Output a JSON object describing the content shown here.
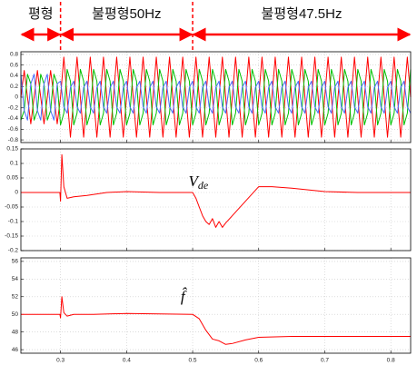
{
  "chart_data": [
    {
      "type": "line",
      "annotations": [
        "평형",
        "불평형50Hz",
        "불평형47.5Hz"
      ],
      "events": [
        0.3,
        0.5
      ],
      "xlim": [
        0.24,
        0.83
      ],
      "xticks": [
        0.3,
        0.4,
        0.5,
        0.6,
        0.7,
        0.8
      ],
      "xtick_labels": false,
      "ylim": [
        -0.85,
        0.85
      ],
      "yticks": [
        -0.8,
        -0.6,
        -0.4,
        -0.2,
        0,
        0.2,
        0.4,
        0.6,
        0.8
      ],
      "grid": true,
      "x": [
        0.24,
        0.245,
        0.25,
        0.255,
        0.26,
        0.265,
        0.27,
        0.275,
        0.28,
        0.285,
        0.29,
        0.295,
        0.3,
        0.305,
        0.31,
        0.315,
        0.32,
        0.325,
        0.33,
        0.335,
        0.34,
        0.345,
        0.35,
        0.355,
        0.36,
        0.365,
        0.37,
        0.375,
        0.38,
        0.385,
        0.39,
        0.395,
        0.4,
        0.405,
        0.41,
        0.415,
        0.42,
        0.425,
        0.43,
        0.435,
        0.44,
        0.445,
        0.45,
        0.455,
        0.46,
        0.465,
        0.47,
        0.475,
        0.48,
        0.485,
        0.49,
        0.495,
        0.5,
        0.505,
        0.51,
        0.515,
        0.52,
        0.525,
        0.53,
        0.535,
        0.54,
        0.545,
        0.55,
        0.555,
        0.56,
        0.565,
        0.57,
        0.575,
        0.58,
        0.585,
        0.59,
        0.595,
        0.6,
        0.605,
        0.61,
        0.615,
        0.62,
        0.625,
        0.63,
        0.635,
        0.64,
        0.645,
        0.65,
        0.655,
        0.66,
        0.665,
        0.67,
        0.675,
        0.68,
        0.685,
        0.69,
        0.695,
        0.7,
        0.705,
        0.71,
        0.715,
        0.72,
        0.725,
        0.73,
        0.735,
        0.74,
        0.745,
        0.75,
        0.755,
        0.76,
        0.765,
        0.77,
        0.775,
        0.78,
        0.785,
        0.79,
        0.795,
        0.8,
        0.805,
        0.81,
        0.815,
        0.82,
        0.825,
        0.83
      ],
      "series": [
        {
          "color": "#ff0000",
          "values": [
            0,
            0.5,
            0,
            -0.5,
            0,
            0.5,
            0,
            -0.5,
            0,
            0.5,
            0,
            -0.5,
            0,
            0.75,
            0,
            -0.75,
            0,
            0.75,
            0,
            -0.75,
            0,
            0.75,
            0,
            -0.75,
            0,
            0.75,
            0,
            -0.75,
            0,
            0.75,
            0,
            -0.75,
            0,
            0.75,
            0,
            -0.75,
            0,
            0.75,
            0,
            -0.75,
            0,
            0.75,
            0,
            -0.75,
            0,
            0.75,
            0,
            -0.75,
            0,
            0.75,
            0,
            -0.75,
            0,
            0.75,
            0,
            -0.75,
            0,
            0.75,
            0,
            -0.75,
            0,
            0.75,
            0,
            -0.75,
            0,
            0.75,
            0,
            -0.75,
            0,
            0.75,
            0,
            -0.75,
            0,
            0.75,
            0,
            -0.75,
            0,
            0.75,
            0,
            -0.75,
            0,
            0.75,
            0,
            -0.75,
            0,
            0.75,
            0,
            -0.75,
            0,
            0.75,
            0,
            -0.75,
            0,
            0.75,
            0,
            -0.75,
            0,
            0.75,
            0,
            -0.75,
            0,
            0.75,
            0,
            -0.75,
            0,
            0.75,
            0,
            -0.75,
            0,
            0.75,
            0,
            -0.75,
            0,
            0.75,
            0,
            -0.75,
            0,
            0.75,
            0
          ]
        },
        {
          "color": "#00c000",
          "values": [
            -0.43,
            -0.25,
            0.43,
            0.25,
            -0.43,
            -0.25,
            0.43,
            0.25,
            -0.43,
            -0.25,
            0.43,
            0.25,
            -0.52,
            -0.3,
            0.52,
            0.3,
            -0.52,
            -0.3,
            0.52,
            0.3,
            -0.52,
            -0.3,
            0.52,
            0.3,
            -0.52,
            -0.3,
            0.52,
            0.3,
            -0.52,
            -0.3,
            0.52,
            0.3,
            -0.52,
            -0.3,
            0.52,
            0.3,
            -0.52,
            -0.3,
            0.52,
            0.3,
            -0.52,
            -0.3,
            0.52,
            0.3,
            -0.52,
            -0.3,
            0.52,
            0.3,
            -0.52,
            -0.3,
            0.52,
            0.3,
            -0.52,
            -0.3,
            0.52,
            0.3,
            -0.52,
            -0.3,
            0.52,
            0.3,
            -0.52,
            -0.3,
            0.52,
            0.3,
            -0.52,
            -0.3,
            0.52,
            0.3,
            -0.52,
            -0.3,
            0.52,
            0.3,
            -0.52,
            -0.3,
            0.52,
            0.3,
            -0.52,
            -0.3,
            0.52,
            0.3,
            -0.52,
            -0.3,
            0.52,
            0.3,
            -0.52,
            -0.3,
            0.52,
            0.3,
            -0.52,
            -0.3,
            0.52,
            0.3,
            -0.52,
            -0.3,
            0.52,
            0.3,
            -0.52,
            -0.3,
            0.52,
            0.3,
            -0.52,
            -0.3,
            0.52,
            0.3,
            -0.52,
            -0.3,
            0.52,
            0.3,
            -0.52,
            -0.3,
            0.52,
            0.3,
            -0.52,
            -0.3,
            0.52,
            0.3,
            -0.52,
            -0.3,
            0.52
          ]
        },
        {
          "color": "#4a6cff",
          "values": [
            0.43,
            -0.25,
            -0.43,
            0.25,
            0.43,
            -0.25,
            -0.43,
            0.25,
            0.43,
            -0.25,
            -0.43,
            0.25,
            0.3,
            -0.18,
            -0.3,
            0.18,
            0.3,
            -0.18,
            -0.3,
            0.18,
            0.3,
            -0.18,
            -0.3,
            0.18,
            0.3,
            -0.18,
            -0.3,
            0.18,
            0.3,
            -0.18,
            -0.3,
            0.18,
            0.3,
            -0.18,
            -0.3,
            0.18,
            0.3,
            -0.18,
            -0.3,
            0.18,
            0.3,
            -0.18,
            -0.3,
            0.18,
            0.3,
            -0.18,
            -0.3,
            0.18,
            0.3,
            -0.18,
            -0.3,
            0.18,
            0.3,
            -0.18,
            -0.3,
            0.18,
            0.3,
            -0.18,
            -0.3,
            0.18,
            0.3,
            -0.18,
            -0.3,
            0.18,
            0.3,
            -0.18,
            -0.3,
            0.18,
            0.3,
            -0.18,
            -0.3,
            0.18,
            0.3,
            -0.18,
            -0.3,
            0.18,
            0.3,
            -0.18,
            -0.3,
            0.18,
            0.3,
            -0.18,
            -0.3,
            0.18,
            0.3,
            -0.18,
            -0.3,
            0.18,
            0.3,
            -0.18,
            -0.3,
            0.18,
            0.3,
            -0.18,
            -0.3,
            0.18,
            0.3,
            -0.18,
            -0.3,
            0.18,
            0.3,
            -0.18,
            -0.3,
            0.18,
            0.3,
            -0.18,
            -0.3,
            0.18,
            0.3,
            -0.18,
            -0.3,
            0.18,
            0.3,
            -0.18,
            -0.3,
            0.18,
            0.3,
            -0.18,
            -0.3
          ]
        }
      ]
    },
    {
      "type": "line",
      "label": "V",
      "label_sub": "de",
      "xlim": [
        0.24,
        0.83
      ],
      "xticks": [
        0.3,
        0.4,
        0.5,
        0.6,
        0.7,
        0.8
      ],
      "xtick_labels": false,
      "ylim": [
        -0.2,
        0.15
      ],
      "yticks": [
        -0.2,
        -0.15,
        -0.1,
        -0.05,
        0,
        0.05,
        0.1,
        0.15
      ],
      "grid": true,
      "x": [
        0.24,
        0.29,
        0.299,
        0.3,
        0.302,
        0.305,
        0.31,
        0.32,
        0.34,
        0.37,
        0.4,
        0.45,
        0.5,
        0.505,
        0.51,
        0.515,
        0.52,
        0.525,
        0.53,
        0.535,
        0.54,
        0.545,
        0.55,
        0.56,
        0.58,
        0.6,
        0.62,
        0.65,
        0.7,
        0.75,
        0.83
      ],
      "series": [
        {
          "color": "#ff0000",
          "values": [
            0,
            0,
            0,
            -0.03,
            0.13,
            0.02,
            -0.02,
            -0.015,
            -0.01,
            0,
            0.003,
            0,
            0,
            -0.02,
            -0.05,
            -0.08,
            -0.1,
            -0.11,
            -0.09,
            -0.12,
            -0.1,
            -0.12,
            -0.105,
            -0.08,
            -0.03,
            0.02,
            0.02,
            0.015,
            0.003,
            0,
            0
          ]
        }
      ]
    },
    {
      "type": "line",
      "label": "f̂",
      "xlim": [
        0.24,
        0.83
      ],
      "xticks": [
        0.3,
        0.4,
        0.5,
        0.6,
        0.7,
        0.8
      ],
      "xtick_labels": true,
      "ylim": [
        45.6,
        56.4
      ],
      "yticks": [
        46,
        48,
        50,
        52,
        54,
        56
      ],
      "grid": true,
      "x": [
        0.24,
        0.299,
        0.3,
        0.302,
        0.305,
        0.31,
        0.32,
        0.35,
        0.4,
        0.5,
        0.51,
        0.52,
        0.53,
        0.54,
        0.55,
        0.56,
        0.58,
        0.6,
        0.65,
        0.7,
        0.83
      ],
      "series": [
        {
          "color": "#ff0000",
          "values": [
            50,
            50,
            49.6,
            52,
            50.2,
            49.8,
            50,
            50,
            50.1,
            50,
            49.5,
            48.2,
            47.2,
            47,
            46.6,
            46.7,
            47.1,
            47.4,
            47.5,
            47.5,
            47.5
          ]
        }
      ]
    }
  ]
}
